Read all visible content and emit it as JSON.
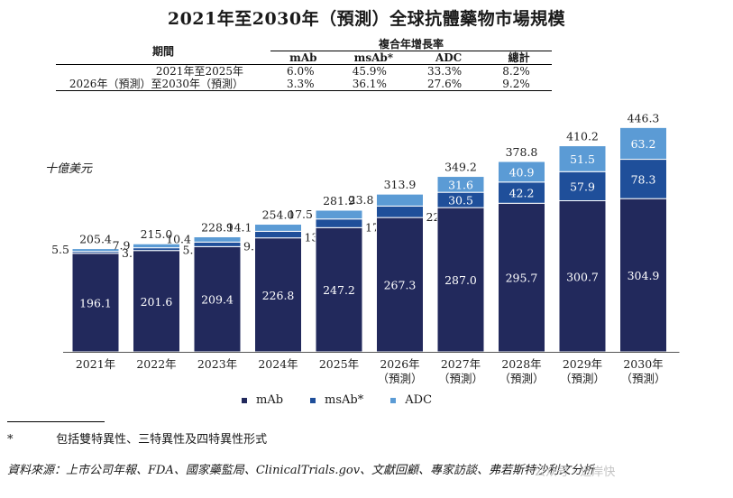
{
  "title": "2021年至2030年（預測）全球抗體藥物市場規模",
  "cagr_table": {
    "period_header": "期間",
    "group_header": "複合年增長率",
    "columns": [
      "mAb",
      "msAb*",
      "ADC",
      "總計"
    ],
    "rows": [
      {
        "label": "2021年至2025年",
        "values": [
          "6.0%",
          "45.9%",
          "33.3%",
          "8.2%"
        ]
      },
      {
        "label": "2026年（預測）至2030年（預測）",
        "values": [
          "3.3%",
          "36.1%",
          "27.6%",
          "9.2%"
        ]
      }
    ]
  },
  "chart_data": {
    "type": "bar",
    "stacked": true,
    "ylabel": "十億美元",
    "categories": [
      [
        "2021年"
      ],
      [
        "2022年"
      ],
      [
        "2023年"
      ],
      [
        "2024年"
      ],
      [
        "2025年"
      ],
      [
        "2026年",
        "（預測）"
      ],
      [
        "2027年",
        "（預測）"
      ],
      [
        "2028年",
        "（預測）"
      ],
      [
        "2029年",
        "（預測）"
      ],
      [
        "2030年",
        "（預測）"
      ]
    ],
    "series": [
      {
        "name": "mAb",
        "color": "#22295c",
        "values": [
          196.1,
          201.6,
          209.4,
          226.8,
          247.2,
          267.3,
          287.0,
          295.7,
          300.7,
          304.9
        ]
      },
      {
        "name": "msAb*",
        "color": "#1f4f9a",
        "values": [
          3.8,
          5.5,
          9.1,
          13.1,
          17.2,
          22.8,
          30.5,
          42.2,
          57.9,
          78.3
        ]
      },
      {
        "name": "ADC",
        "color": "#5b9bd5",
        "values": [
          5.5,
          7.9,
          10.4,
          14.1,
          17.5,
          23.8,
          31.6,
          40.9,
          51.5,
          63.2
        ]
      }
    ],
    "totals": [
      205.4,
      215.0,
      228.9,
      254.0,
      281.9,
      313.9,
      349.2,
      378.8,
      410.2,
      446.3
    ],
    "legend": [
      "mAb",
      "msAb*",
      "ADC"
    ],
    "legend_position": "bottom"
  },
  "footnote": {
    "mark": "*",
    "text": "包括雙特異性、三特異性及四特異性形式"
  },
  "source": "資料來源：上市公司年報、FDA、國家藥監局、ClinicalTrials.gov、文獻回顧、專家訪談、弗若斯特沙利文分析",
  "watermark": "公众号 · 近岸快"
}
